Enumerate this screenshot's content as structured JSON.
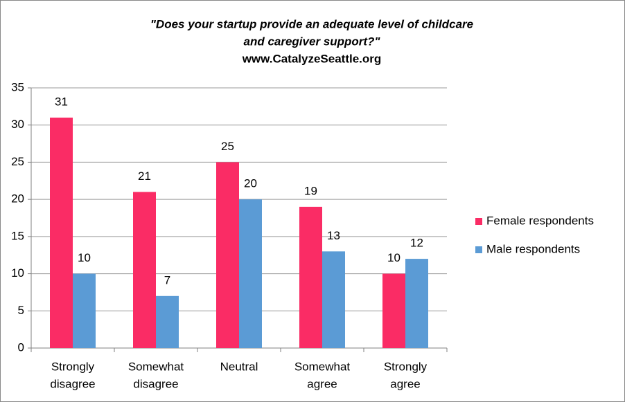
{
  "chart_data": {
    "type": "bar",
    "title": [
      "\"Does your startup provide an adequate level of childcare",
      "and caregiver support?\""
    ],
    "subtitle": "www.CatalyzeSeattle.org",
    "categories": [
      [
        "Strongly",
        "disagree"
      ],
      [
        "Somewhat",
        "disagree"
      ],
      [
        "Neutral"
      ],
      [
        "Somewhat",
        "agree"
      ],
      [
        "Strongly",
        "agree"
      ]
    ],
    "series": [
      {
        "name": "Female respondents",
        "color": "#fa2c65",
        "values": [
          31,
          21,
          25,
          19,
          10
        ]
      },
      {
        "name": "Male respondents",
        "color": "#5b9bd5",
        "values": [
          10,
          7,
          20,
          13,
          12
        ]
      }
    ],
    "ylim": [
      0,
      35
    ],
    "yticks": [
      0,
      5,
      10,
      15,
      20,
      25,
      30,
      35
    ],
    "grid": true,
    "legend": "right"
  }
}
